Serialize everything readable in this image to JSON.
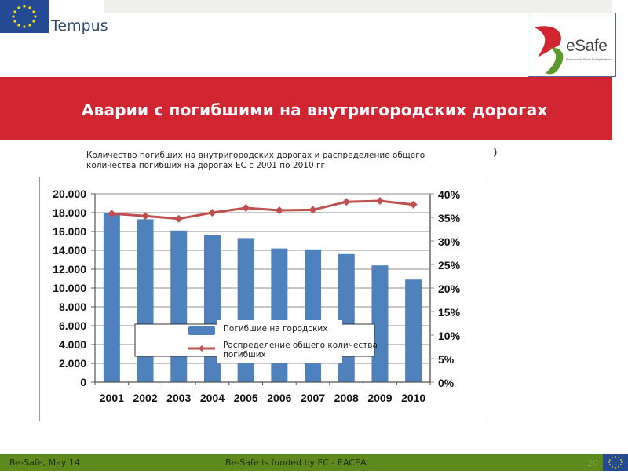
{
  "header": {
    "left_logo_text": "Tempus",
    "right_logo_text": "eSafe",
    "right_logo_subtext": "Belarussian Road Safety Network"
  },
  "slide": {
    "title": "Аварии с погибшими на внутригородских дорогах",
    "subtitle": "Количество погибших на внутригородских дорогах и распределение общего количества погибших на дорогах ЕС с 2001 по 2010 гг",
    "stray_char": ")"
  },
  "footer": {
    "left": "Be-Safe, May 14",
    "center": "Be-Safe is funded by EC - EACEA",
    "page": "20"
  },
  "colors": {
    "title_band": "#d12632",
    "footer_band": "#5d8a1c",
    "bar": "#4f81bd",
    "line": "#c0504d"
  },
  "chart_data": {
    "type": "bar",
    "title": "Количество погибших на внутригородских дорогах и распределение общего количества погибших на дорогах ЕС с 2001 по 2010 гг",
    "categories": [
      "2001",
      "2002",
      "2003",
      "2004",
      "2005",
      "2006",
      "2007",
      "2008",
      "2009",
      "2010"
    ],
    "series": [
      {
        "name": "Погибшие на городских",
        "type": "bar",
        "axis": "left",
        "values": [
          18000,
          17300,
          16100,
          15600,
          15300,
          14200,
          14100,
          13600,
          12400,
          10900
        ]
      },
      {
        "name": "Распределение общего количества погибших",
        "type": "line",
        "axis": "right",
        "values": [
          35.8,
          35.3,
          34.7,
          36.0,
          37.0,
          36.5,
          36.6,
          38.3,
          38.5,
          37.7
        ]
      }
    ],
    "left_axis": {
      "ylim": [
        0,
        20000
      ],
      "ticks": [
        "0",
        "2.000",
        "4.000",
        "6.000",
        "8.000",
        "10.000",
        "12.000",
        "14.000",
        "16.000",
        "18.000",
        "20.000"
      ]
    },
    "right_axis": {
      "ylim": [
        0,
        40
      ],
      "ticks": [
        "0%",
        "5%",
        "10%",
        "15%",
        "20%",
        "25%",
        "30%",
        "35%",
        "40%"
      ]
    },
    "xlabel": "",
    "ylabel": "",
    "grid": true,
    "legend": {
      "position": "inside-bottom-center",
      "entries": [
        "Погибшие на городских",
        "Распределение общего количества погибших"
      ]
    }
  }
}
